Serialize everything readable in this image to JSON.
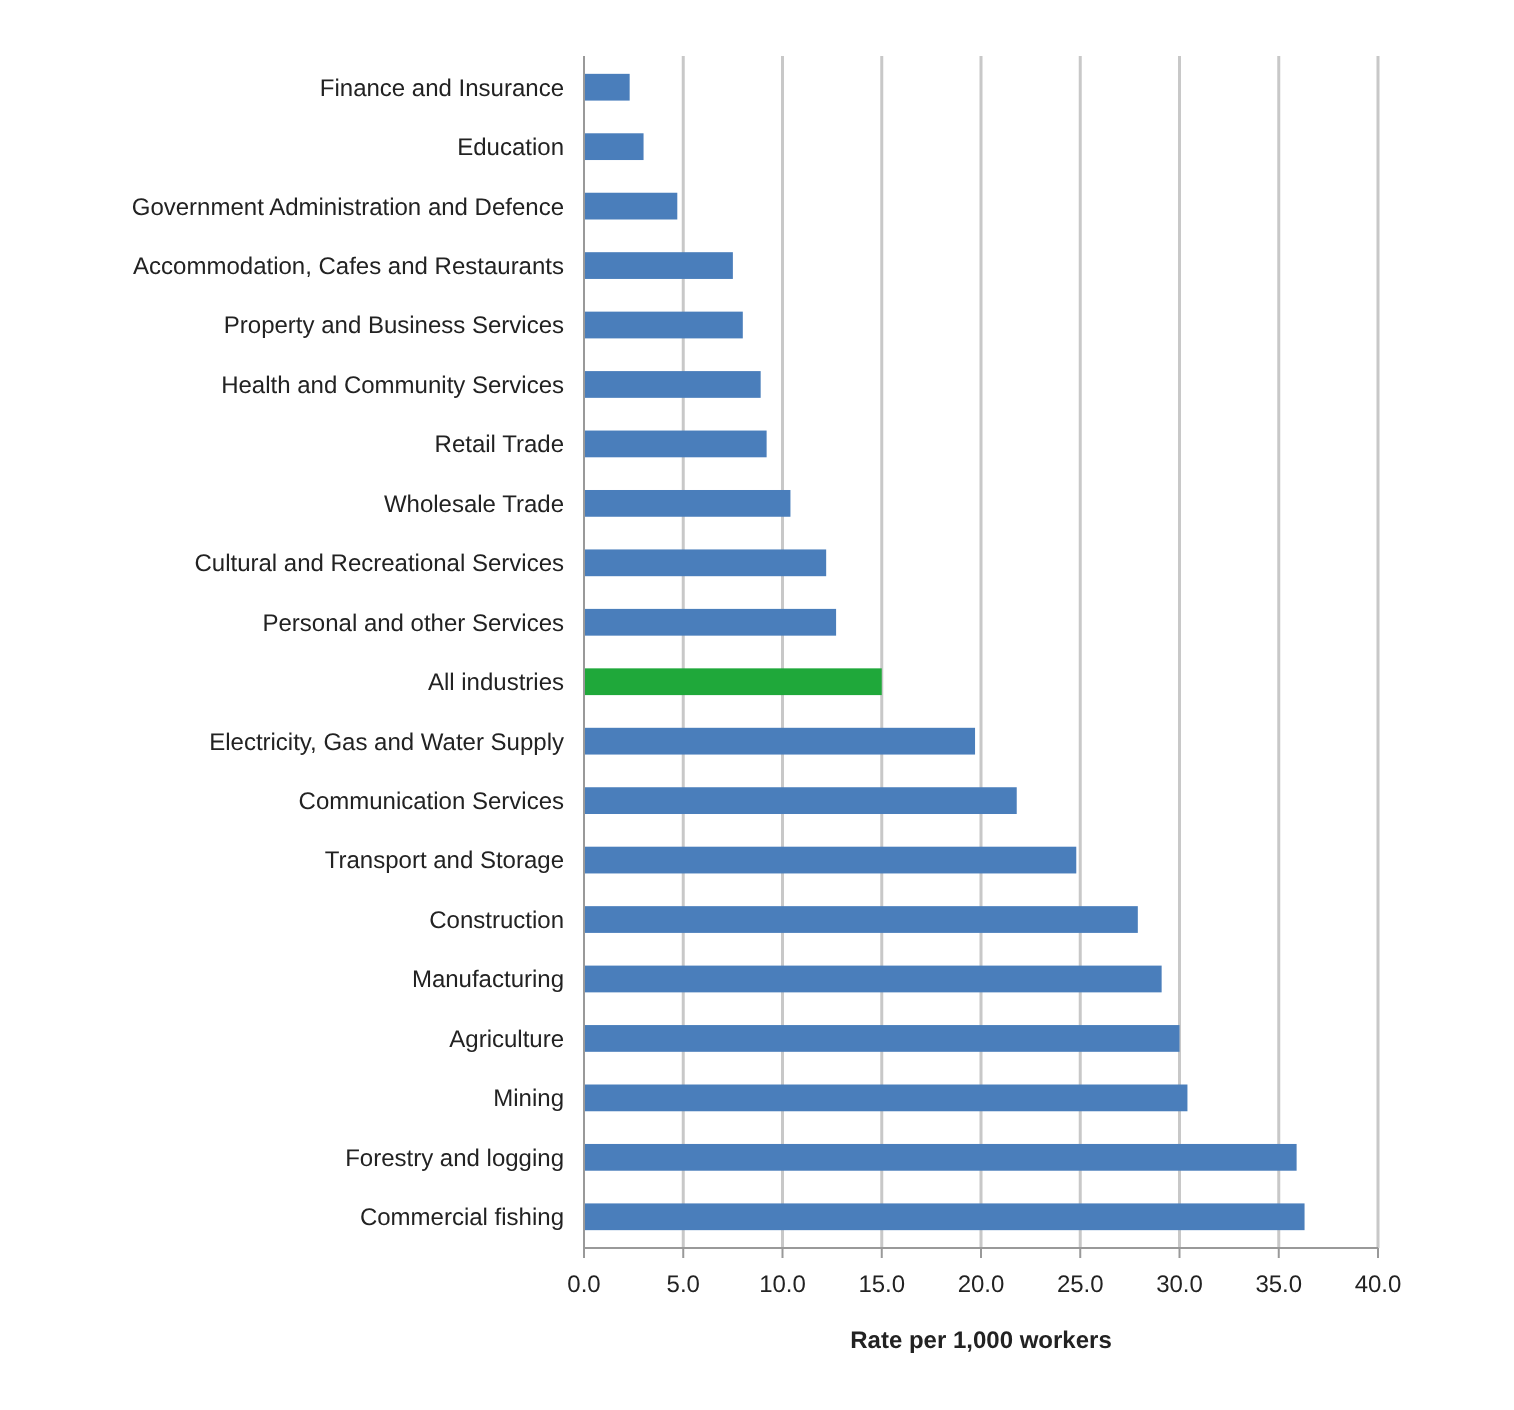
{
  "chart_data": {
    "type": "bar",
    "orientation": "horizontal",
    "xlabel": "Rate per 1,000 workers",
    "categories": [
      "Finance and Insurance",
      "Education",
      "Government Administration and Defence",
      "Accommodation, Cafes and Restaurants",
      "Property and Business Services",
      "Health and Community Services",
      "Retail Trade",
      "Wholesale Trade",
      "Cultural and Recreational Services",
      "Personal and other Services",
      "All industries",
      "Electricity, Gas and Water Supply",
      "Communication Services",
      "Transport and Storage",
      "Construction",
      "Manufacturing",
      "Agriculture",
      "Mining",
      "Forestry and logging",
      "Commercial fishing"
    ],
    "values": [
      2.3,
      3.0,
      4.7,
      7.5,
      8.0,
      8.9,
      9.2,
      10.4,
      12.2,
      12.7,
      15.0,
      19.7,
      21.8,
      24.8,
      27.9,
      29.1,
      30.0,
      30.4,
      35.9,
      36.3
    ],
    "colors": [
      "#4a7ebb",
      "#4a7ebb",
      "#4a7ebb",
      "#4a7ebb",
      "#4a7ebb",
      "#4a7ebb",
      "#4a7ebb",
      "#4a7ebb",
      "#4a7ebb",
      "#4a7ebb",
      "#1fa83a",
      "#4a7ebb",
      "#4a7ebb",
      "#4a7ebb",
      "#4a7ebb",
      "#4a7ebb",
      "#4a7ebb",
      "#4a7ebb",
      "#4a7ebb",
      "#4a7ebb"
    ],
    "xlim": [
      0,
      40
    ],
    "xticks": [
      {
        "value": 0,
        "label": "0.0"
      },
      {
        "value": 5,
        "label": "5.0"
      },
      {
        "value": 10,
        "label": "10.0"
      },
      {
        "value": 15,
        "label": "15.0"
      },
      {
        "value": 20,
        "label": "20.0"
      },
      {
        "value": 25,
        "label": "25.0"
      },
      {
        "value": 30,
        "label": "30.0"
      },
      {
        "value": 35,
        "label": "35.0"
      },
      {
        "value": 40,
        "label": "40.0"
      }
    ],
    "grid": "x"
  }
}
